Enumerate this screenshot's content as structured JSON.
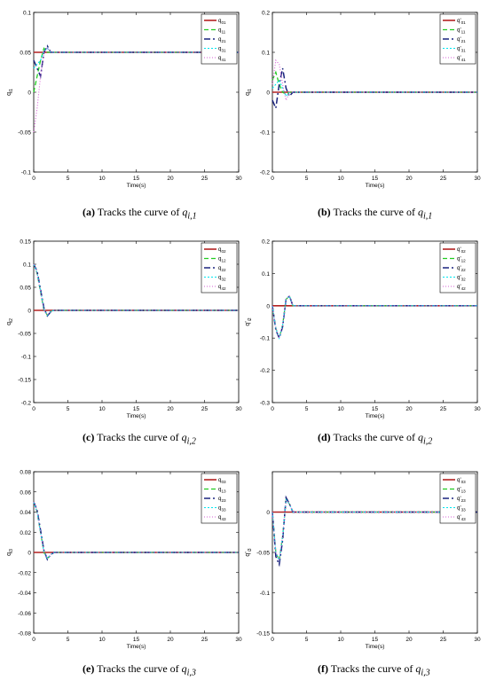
{
  "colors": {
    "series": [
      "#b22222",
      "#22cc22",
      "#1a237e",
      "#00e5ee",
      "#d65fd6"
    ],
    "axis": "#000000"
  },
  "panels": [
    {
      "label": "(a)",
      "caption_text": "Tracks the curve of ",
      "caption_var": "q",
      "caption_sub": "i,1",
      "caption_dot": false,
      "ylabel": "q",
      "ylabel_sub": "i1",
      "xlabel": "Time(s)",
      "yticks": [
        "0.1",
        "0.05",
        "0",
        "-0.05",
        "-0.1"
      ],
      "xticks": [
        "0",
        "5",
        "10",
        "15",
        "20",
        "25",
        "30"
      ],
      "legend": [
        "q01",
        "q11",
        "q21",
        "q31",
        "q41"
      ],
      "legend_base": [
        "q",
        "q",
        "q",
        "q",
        "q"
      ],
      "legend_sub": [
        "01",
        "11",
        "21",
        "31",
        "41"
      ]
    },
    {
      "label": "(b)",
      "caption_text": "Tracks the curve of ",
      "caption_var": "q",
      "caption_sub": "i,1",
      "caption_dot": true,
      "ylabel": "q",
      "ylabel_sub": "i1",
      "xlabel": "Time(s)",
      "yticks": [
        "0.2",
        "0.1",
        "0",
        "-0.1",
        "-0.2"
      ],
      "xticks": [
        "0",
        "5",
        "10",
        "15",
        "20",
        "25",
        "30"
      ],
      "legend": [
        "q'01",
        "q'11",
        "q'21",
        "q'31",
        "q'41"
      ],
      "legend_base": [
        "q'",
        "q'",
        "q'",
        "q'",
        "q'"
      ],
      "legend_sub": [
        "01",
        "11",
        "21",
        "31",
        "41"
      ]
    },
    {
      "label": "(c)",
      "caption_text": "Tracks the curve of ",
      "caption_var": "q",
      "caption_sub": "i,2",
      "caption_dot": false,
      "ylabel": "q",
      "ylabel_sub": "i2",
      "xlabel": "Time(s)",
      "yticks": [
        "0.15",
        "0.1",
        "0.05",
        "0",
        "-0.05",
        "-0.1",
        "-0.15",
        "-0.2"
      ],
      "xticks": [
        "0",
        "5",
        "10",
        "15",
        "20",
        "25",
        "30"
      ],
      "legend": [
        "q02",
        "q12",
        "q22",
        "q32",
        "q42"
      ],
      "legend_base": [
        "q",
        "q",
        "q",
        "q",
        "q"
      ],
      "legend_sub": [
        "02",
        "12",
        "22",
        "32",
        "42"
      ]
    },
    {
      "label": "(d)",
      "caption_text": "Tracks the curve of ",
      "caption_var": "q",
      "caption_sub": "i,2",
      "caption_dot": true,
      "ylabel": "q'",
      "ylabel_sub": "i2",
      "xlabel": "Time(s)",
      "yticks": [
        "0.2",
        "0.1",
        "0",
        "-0.1",
        "-0.2",
        "-0.3"
      ],
      "xticks": [
        "0",
        "5",
        "10",
        "15",
        "20",
        "25",
        "30"
      ],
      "legend": [
        "q'02",
        "q'12",
        "q'22",
        "q'32",
        "q'42"
      ],
      "legend_base": [
        "q'",
        "q'",
        "q'",
        "q'",
        "q'"
      ],
      "legend_sub": [
        "02",
        "12",
        "22",
        "32",
        "42"
      ]
    },
    {
      "label": "(e)",
      "caption_text": "Tracks the curve of ",
      "caption_var": "q",
      "caption_sub": "i,3",
      "caption_dot": false,
      "ylabel": "q",
      "ylabel_sub": "i3",
      "xlabel": "Time(s)",
      "yticks": [
        "0.08",
        "0.06",
        "0.04",
        "0.02",
        "0",
        "-0.02",
        "-0.04",
        "-0.06",
        "-0.08"
      ],
      "xticks": [
        "0",
        "5",
        "10",
        "15",
        "20",
        "25",
        "30"
      ],
      "legend": [
        "q03",
        "q13",
        "q23",
        "q33",
        "q43"
      ],
      "legend_base": [
        "q",
        "q",
        "q",
        "q",
        "q"
      ],
      "legend_sub": [
        "03",
        "13",
        "23",
        "33",
        "43"
      ]
    },
    {
      "label": "(f)",
      "caption_text": "Tracks the curve of ",
      "caption_var": "q",
      "caption_sub": "i,3",
      "caption_dot": true,
      "ylabel": "q'",
      "ylabel_sub": "i3",
      "xlabel": "Time(s)",
      "yticks": [
        "0",
        "-0.05",
        "-0.1",
        "-0.15"
      ],
      "xticks": [
        "0",
        "5",
        "10",
        "15",
        "20",
        "25",
        "30"
      ],
      "legend": [
        "q'03",
        "q'13",
        "q'23",
        "q'33",
        "q'43"
      ],
      "legend_base": [
        "q'",
        "q'",
        "q'",
        "q'",
        "q'"
      ],
      "legend_sub": [
        "03",
        "13",
        "23",
        "33",
        "43"
      ]
    }
  ],
  "chart_data": [
    {
      "type": "line",
      "title": "",
      "xlabel": "Time(s)",
      "ylabel": "qi1",
      "xlim": [
        0,
        30
      ],
      "ylim": [
        -0.1,
        0.1
      ],
      "series": [
        {
          "name": "q01",
          "x": [
            0,
            30
          ],
          "y": [
            0.05,
            0.05
          ]
        },
        {
          "name": "q11",
          "x": [
            0,
            0.5,
            1.0,
            1.5,
            2.0,
            2.5,
            3,
            30
          ],
          "y": [
            0.0,
            0.02,
            0.04,
            0.055,
            0.05,
            0.05,
            0.05,
            0.05
          ]
        },
        {
          "name": "q21",
          "x": [
            0,
            0.5,
            1.0,
            1.5,
            2.0,
            2.5,
            3,
            30
          ],
          "y": [
            0.04,
            0.03,
            0.02,
            0.05,
            0.058,
            0.05,
            0.05,
            0.05
          ]
        },
        {
          "name": "q31",
          "x": [
            0,
            0.5,
            1.0,
            1.5,
            2.0,
            2.5,
            3,
            30
          ],
          "y": [
            0.03,
            0.035,
            0.04,
            0.052,
            0.055,
            0.05,
            0.05,
            0.05
          ]
        },
        {
          "name": "q41",
          "x": [
            0,
            0.5,
            1.0,
            1.5,
            2.0,
            2.5,
            3,
            30
          ],
          "y": [
            -0.05,
            -0.02,
            0.02,
            0.05,
            0.056,
            0.05,
            0.05,
            0.05
          ]
        }
      ]
    },
    {
      "type": "line",
      "title": "",
      "xlabel": "Time(s)",
      "ylabel": "qi1",
      "xlim": [
        0,
        30
      ],
      "ylim": [
        -0.2,
        0.2
      ],
      "series": [
        {
          "name": "q'01",
          "x": [
            0,
            30
          ],
          "y": [
            0,
            0
          ]
        },
        {
          "name": "q'11",
          "x": [
            0,
            0.5,
            1.0,
            1.5,
            2.0,
            2.5,
            3,
            30
          ],
          "y": [
            0.03,
            0.05,
            0.02,
            0.0,
            -0.005,
            0.0,
            0.0,
            0.0
          ]
        },
        {
          "name": "q'21",
          "x": [
            0,
            0.5,
            1.0,
            1.5,
            2.0,
            2.5,
            3,
            30
          ],
          "y": [
            -0.02,
            -0.04,
            0.02,
            0.06,
            0.01,
            -0.01,
            0.0,
            0.0
          ]
        },
        {
          "name": "q'31",
          "x": [
            0,
            0.5,
            1.0,
            1.5,
            2.0,
            2.5,
            3,
            30
          ],
          "y": [
            0.01,
            0.02,
            0.03,
            0.01,
            -0.01,
            0.0,
            0.0,
            0.0
          ]
        },
        {
          "name": "q'41",
          "x": [
            0,
            0.5,
            1.0,
            1.5,
            2.0,
            2.5,
            3,
            30
          ],
          "y": [
            0.02,
            0.08,
            0.07,
            0.02,
            -0.02,
            0.0,
            0.0,
            0.0
          ]
        }
      ]
    },
    {
      "type": "line",
      "title": "",
      "xlabel": "Time(s)",
      "ylabel": "qi2",
      "xlim": [
        0,
        30
      ],
      "ylim": [
        -0.2,
        0.15
      ],
      "series": [
        {
          "name": "q02",
          "x": [
            0,
            30
          ],
          "y": [
            0,
            0
          ]
        },
        {
          "name": "q12",
          "x": [
            0,
            0.5,
            1.0,
            1.5,
            2.0,
            2.5,
            3,
            30
          ],
          "y": [
            0.1,
            0.08,
            0.04,
            0.0,
            -0.01,
            -0.002,
            0.0,
            0.0
          ]
        },
        {
          "name": "q22",
          "x": [
            0,
            0.5,
            1.0,
            1.5,
            2.0,
            2.5,
            3,
            30
          ],
          "y": [
            0.1,
            0.085,
            0.045,
            0.005,
            -0.012,
            -0.003,
            0.0,
            0.0
          ]
        },
        {
          "name": "q32",
          "x": [
            0,
            0.5,
            1.0,
            1.5,
            2.0,
            2.5,
            3,
            30
          ],
          "y": [
            0.1,
            0.082,
            0.042,
            0.002,
            -0.011,
            -0.002,
            0.0,
            0.0
          ]
        },
        {
          "name": "q42",
          "x": [
            0,
            0.5,
            1.0,
            1.5,
            2.0,
            2.5,
            3,
            30
          ],
          "y": [
            0.1,
            0.08,
            0.04,
            0.0,
            -0.01,
            -0.002,
            0.0,
            0.0
          ]
        }
      ]
    },
    {
      "type": "line",
      "title": "",
      "xlabel": "Time(s)",
      "ylabel": "q'i2",
      "xlim": [
        0,
        30
      ],
      "ylim": [
        -0.3,
        0.2
      ],
      "series": [
        {
          "name": "q'02",
          "x": [
            0,
            30
          ],
          "y": [
            0,
            0
          ]
        },
        {
          "name": "q'12",
          "x": [
            0,
            0.5,
            1.0,
            1.5,
            2.0,
            2.5,
            3,
            30
          ],
          "y": [
            0.0,
            -0.07,
            -0.1,
            -0.06,
            0.02,
            0.03,
            0.0,
            0.0
          ]
        },
        {
          "name": "q'22",
          "x": [
            0,
            0.5,
            1.0,
            1.5,
            2.0,
            2.5,
            3,
            30
          ],
          "y": [
            0.0,
            -0.075,
            -0.1,
            -0.065,
            0.02,
            0.03,
            0.0,
            0.0
          ]
        },
        {
          "name": "q'32",
          "x": [
            0,
            0.5,
            1.0,
            1.5,
            2.0,
            2.5,
            3,
            30
          ],
          "y": [
            0.0,
            -0.07,
            -0.1,
            -0.06,
            0.02,
            0.03,
            0.0,
            0.0
          ]
        },
        {
          "name": "q'42",
          "x": [
            0,
            0.5,
            1.0,
            1.5,
            2.0,
            2.5,
            3,
            30
          ],
          "y": [
            0.0,
            -0.07,
            -0.1,
            -0.06,
            0.02,
            0.03,
            0.0,
            0.0
          ]
        }
      ]
    },
    {
      "type": "line",
      "title": "",
      "xlabel": "Time(s)",
      "ylabel": "qi3",
      "xlim": [
        0,
        30
      ],
      "ylim": [
        -0.08,
        0.08
      ],
      "series": [
        {
          "name": "q03",
          "x": [
            0,
            30
          ],
          "y": [
            0,
            0
          ]
        },
        {
          "name": "q13",
          "x": [
            0,
            0.5,
            1.0,
            1.5,
            2.0,
            2.5,
            3,
            30
          ],
          "y": [
            0.05,
            0.04,
            0.02,
            0.0,
            -0.006,
            -0.002,
            0.0,
            0.0
          ]
        },
        {
          "name": "q23",
          "x": [
            0,
            0.5,
            1.0,
            1.5,
            2.0,
            2.5,
            3,
            30
          ],
          "y": [
            0.05,
            0.042,
            0.022,
            0.002,
            -0.007,
            -0.002,
            0.0,
            0.0
          ]
        },
        {
          "name": "q33",
          "x": [
            0,
            0.5,
            1.0,
            1.5,
            2.0,
            2.5,
            3,
            30
          ],
          "y": [
            0.05,
            0.04,
            0.02,
            0.0,
            -0.006,
            -0.002,
            0.0,
            0.0
          ]
        },
        {
          "name": "q43",
          "x": [
            0,
            0.5,
            1.0,
            1.5,
            2.0,
            2.5,
            3,
            30
          ],
          "y": [
            0.05,
            0.04,
            0.02,
            0.0,
            -0.006,
            -0.002,
            0.0,
            0.0
          ]
        }
      ]
    },
    {
      "type": "line",
      "title": "",
      "xlabel": "Time(s)",
      "ylabel": "q'i3",
      "xlim": [
        0,
        30
      ],
      "ylim": [
        -0.15,
        0.05
      ],
      "series": [
        {
          "name": "q'03",
          "x": [
            0,
            30
          ],
          "y": [
            0,
            0
          ]
        },
        {
          "name": "q'13",
          "x": [
            0,
            0.5,
            1.0,
            1.5,
            2.0,
            2.5,
            3,
            30
          ],
          "y": [
            0.0,
            -0.05,
            -0.06,
            -0.03,
            0.015,
            0.01,
            0.0,
            0.0
          ]
        },
        {
          "name": "q'23",
          "x": [
            0,
            0.5,
            1.0,
            1.5,
            2.0,
            2.5,
            3,
            30
          ],
          "y": [
            0.0,
            -0.055,
            -0.065,
            -0.035,
            0.018,
            0.01,
            0.0,
            0.0
          ]
        },
        {
          "name": "q'33",
          "x": [
            0,
            0.5,
            1.0,
            1.5,
            2.0,
            2.5,
            3,
            30
          ],
          "y": [
            0.0,
            -0.05,
            -0.06,
            -0.03,
            0.015,
            0.01,
            0.0,
            0.0
          ]
        },
        {
          "name": "q'43",
          "x": [
            0,
            0.5,
            1.0,
            1.5,
            2.0,
            2.5,
            3,
            30
          ],
          "y": [
            0.0,
            -0.05,
            -0.06,
            -0.03,
            0.015,
            0.01,
            0.0,
            0.0
          ]
        }
      ]
    }
  ]
}
